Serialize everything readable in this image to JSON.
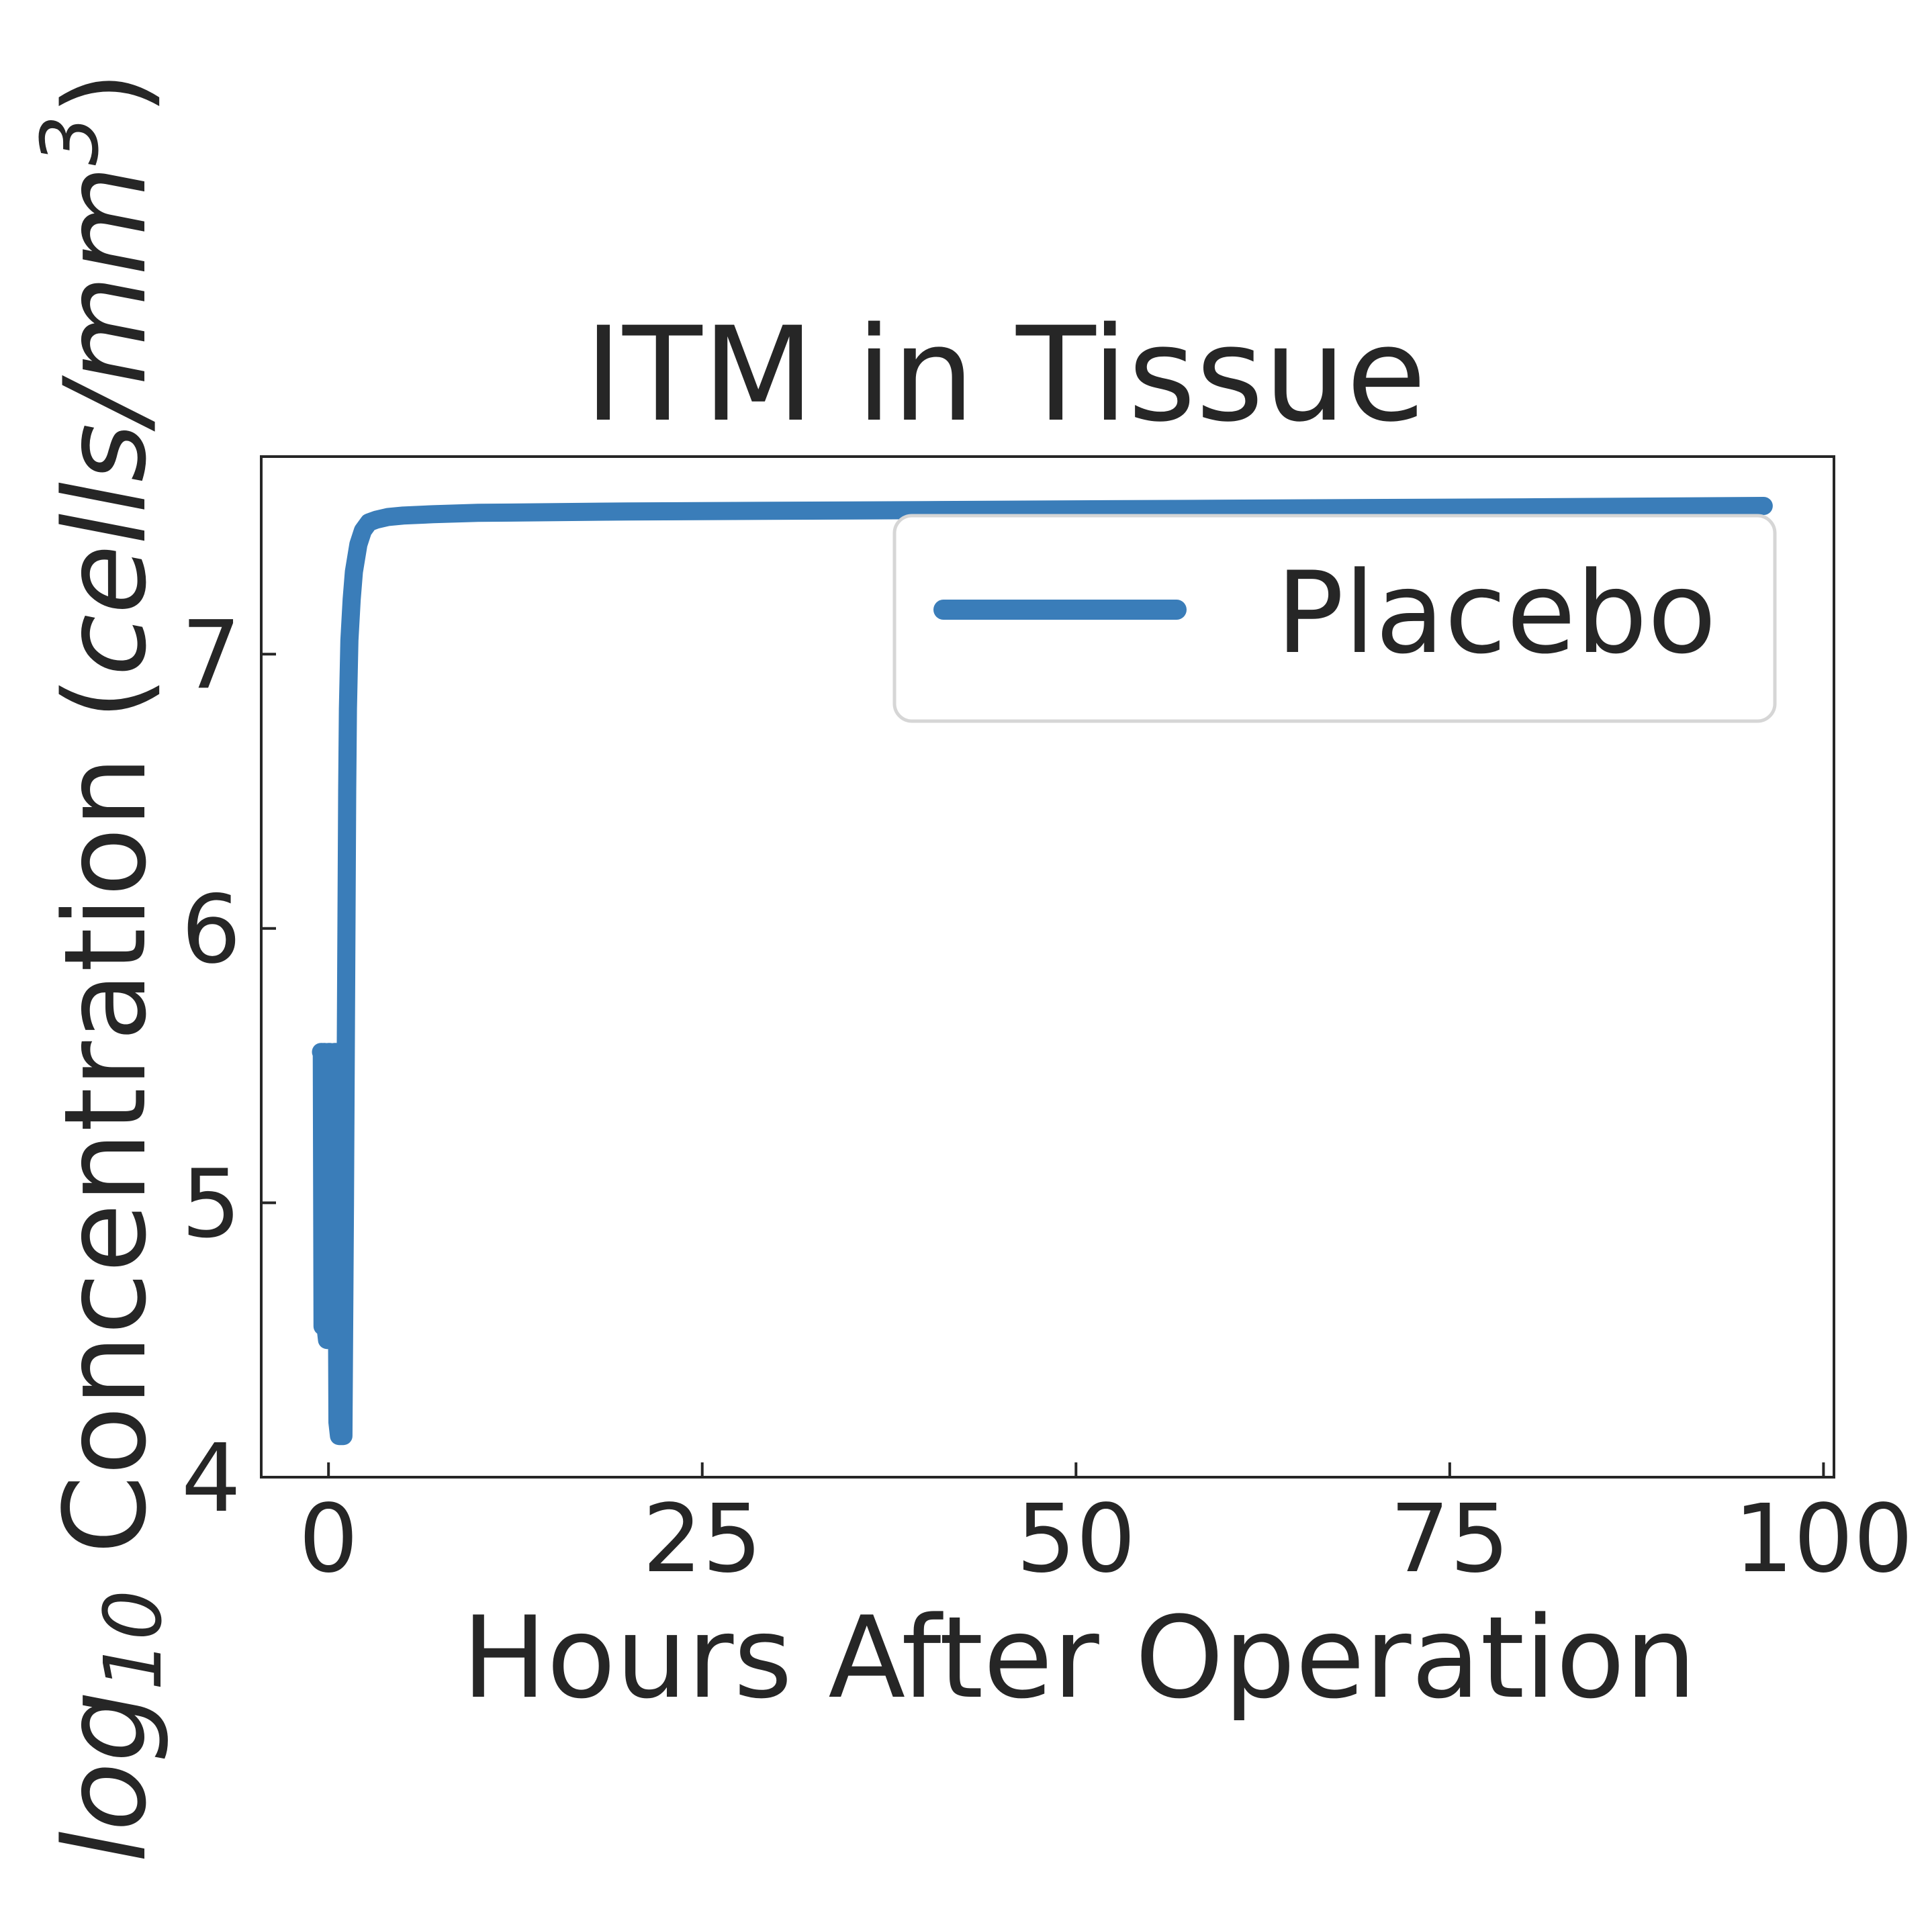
{
  "chart_data": {
    "type": "line",
    "title": "ITM in Tissue",
    "xlabel": "Hours After Operation",
    "ylabel_prefix": "log",
    "ylabel_subscript": "10",
    "ylabel_main": " Concentration (",
    "ylabel_unit_italic": "cells/mm",
    "ylabel_superscript": "3",
    "ylabel_suffix": ")",
    "xlim": [
      -4.5,
      100.7
    ],
    "ylim": [
      4,
      7.72
    ],
    "xticks": [
      0,
      25,
      50,
      75,
      100
    ],
    "xtick_labels": [
      "0",
      "25",
      "50",
      "75",
      "100"
    ],
    "yticks": [
      4,
      5,
      6,
      7
    ],
    "ytick_labels": [
      "4",
      "5",
      "6",
      "7"
    ],
    "grid": false,
    "legend_position": "upper-right",
    "series": [
      {
        "name": "Placebo",
        "color": "#3a7db9",
        "x": [
          -0.5,
          -0.45,
          -0.4,
          -0.35,
          -0.3,
          -0.25,
          -0.2,
          -0.1,
          0.0,
          0.1,
          0.2,
          0.3,
          0.4,
          0.5,
          0.6,
          0.7,
          0.8,
          0.9,
          1.0,
          1.1,
          1.2,
          1.25,
          1.3,
          1.4,
          1.55,
          1.7,
          2.0,
          2.3,
          2.7,
          3.2,
          4.0,
          5.0,
          7.0,
          10.0,
          20.0,
          40.0,
          60.0,
          80.0,
          96.0
        ],
        "y": [
          5.55,
          5.55,
          4.55,
          4.55,
          5.55,
          5.55,
          4.55,
          4.5,
          5.55,
          5.55,
          4.55,
          4.5,
          5.55,
          5.55,
          4.2,
          4.15,
          4.15,
          4.15,
          4.15,
          5.0,
          6.0,
          6.5,
          6.8,
          7.05,
          7.2,
          7.3,
          7.4,
          7.45,
          7.48,
          7.49,
          7.5,
          7.505,
          7.51,
          7.515,
          7.52,
          7.525,
          7.53,
          7.535,
          7.54
        ]
      }
    ]
  }
}
